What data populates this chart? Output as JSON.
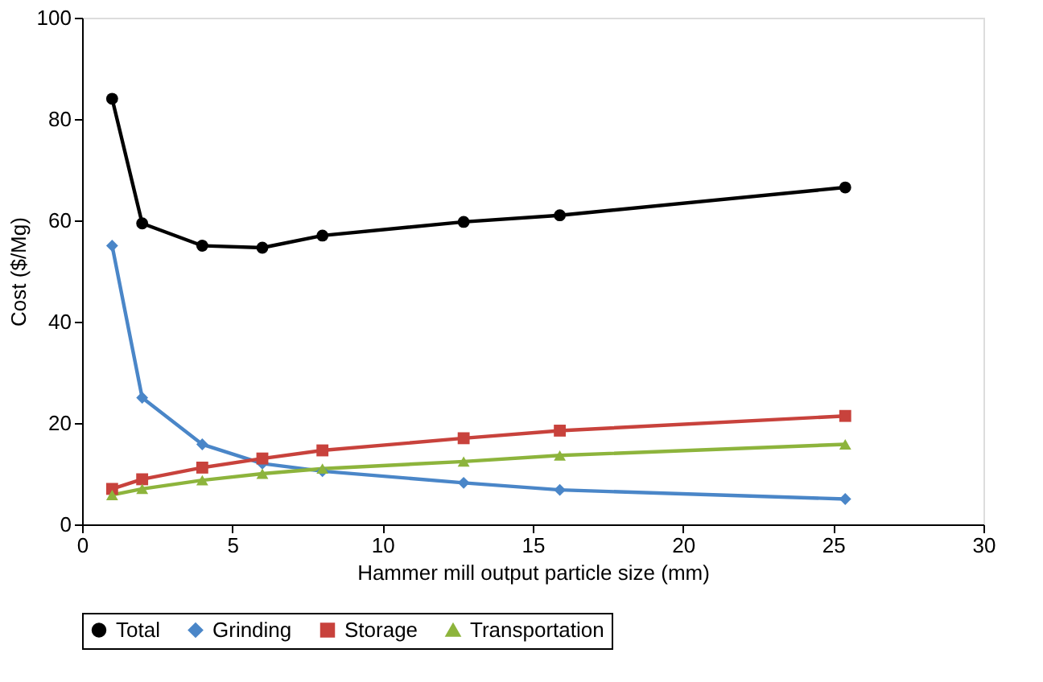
{
  "chart_data": {
    "type": "line",
    "xlabel": "Hammer mill output particle size (mm)",
    "ylabel": "Cost ($/Mg)",
    "x": [
      1,
      2,
      4,
      6,
      8,
      12.7,
      15.9,
      25.4
    ],
    "series": [
      {
        "name": "Total",
        "color": "#000000",
        "marker": "circle",
        "values": [
          84,
          59.4,
          55,
          54.6,
          57,
          59.7,
          61,
          66.5
        ]
      },
      {
        "name": "Grinding",
        "color": "#4a86c8",
        "marker": "diamond",
        "values": [
          55,
          25,
          15.8,
          12,
          10.5,
          8.2,
          6.8,
          5
        ]
      },
      {
        "name": "Storage",
        "color": "#c8423c",
        "marker": "square",
        "values": [
          7,
          8.9,
          11.2,
          13,
          14.6,
          17,
          18.5,
          21.4
        ]
      },
      {
        "name": "Transportation",
        "color": "#8db43c",
        "marker": "triangle",
        "values": [
          5.8,
          7,
          8.7,
          10,
          11,
          12.4,
          13.6,
          15.8
        ]
      }
    ],
    "xlim": [
      0,
      30
    ],
    "xticks": [
      0,
      5,
      10,
      15,
      20,
      25,
      30
    ],
    "ylim": [
      0,
      100
    ],
    "yticks": [
      0,
      20,
      40,
      60,
      80,
      100
    ],
    "grid": false,
    "legend": "bottom",
    "line_style": "solid"
  }
}
